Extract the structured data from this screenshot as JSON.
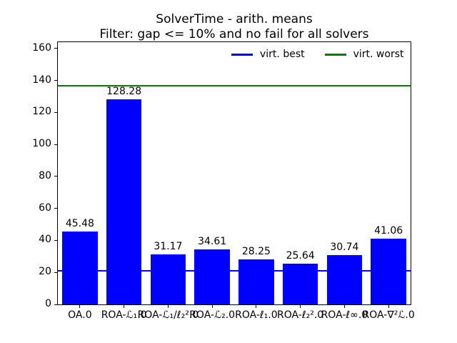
{
  "legend": [
    {
      "label": "virt. best",
      "color": "#0000ff"
    },
    {
      "label": "virt. worst",
      "color": "#008000"
    }
  ],
  "chart_data": {
    "type": "bar",
    "title": "SolverTime - arith. means",
    "subtitle": "Filter: gap <= 10% and no fail for all solvers",
    "categories": [
      "OA.0",
      "ROA-ℒ₁.0",
      "ROA-ℒ₁/ℓ₂².0",
      "ROA-ℒ₂.0",
      "ROA-ℓ₁.0",
      "ROA-ℓ₂².0",
      "ROA-ℓ∞.0",
      "ROA-∇²ℒ.0"
    ],
    "values": [
      45.48,
      128.28,
      31.17,
      34.61,
      28.25,
      25.64,
      30.74,
      41.06
    ],
    "value_labels": [
      "45.48",
      "128.28",
      "31.17",
      "34.61",
      "28.25",
      "25.64",
      "30.74",
      "41.06"
    ],
    "bar_color": "#0000ff",
    "hlines": [
      {
        "name": "virt. best",
        "value": 21.0,
        "color": "#0000ff"
      },
      {
        "name": "virt. worst",
        "value": 136.7,
        "color": "#008000"
      }
    ],
    "xlabel": "",
    "ylabel": "",
    "ylim": [
      0,
      164
    ],
    "yticks": [
      0,
      20,
      40,
      60,
      80,
      100,
      120,
      140,
      160
    ],
    "grid": false,
    "legend_position": "upper right, 2 columns, no frame"
  }
}
